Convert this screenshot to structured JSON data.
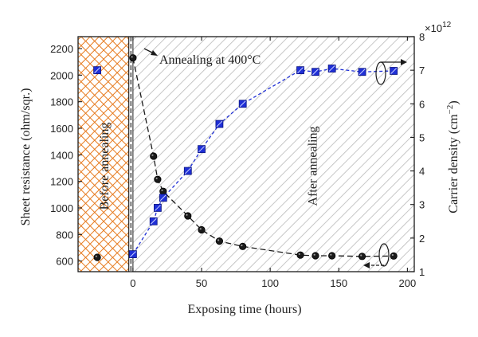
{
  "chart_data": {
    "type": "scatter",
    "xlabel": "Exposing time (hours)",
    "ylabel_left": "Sheet resistance (ohm/sqr.)",
    "ylabel_right": "Carrier density (cm",
    "ylabel_right_sup": "−2",
    "ylabel_right_close": ")",
    "right_multiplier_base": "×10",
    "right_multiplier_exp": "12",
    "xlim": [
      -40,
      205
    ],
    "ylim_left": [
      520,
      2290
    ],
    "ylim_right": [
      1,
      8
    ],
    "xticks": [
      0,
      50,
      100,
      150,
      200
    ],
    "yticks_left": [
      600,
      800,
      1000,
      1200,
      1400,
      1600,
      1800,
      2000,
      2200
    ],
    "yticks_right": [
      1,
      2,
      3,
      4,
      5,
      6,
      7,
      8
    ],
    "regions": {
      "before_label": "Before annealing",
      "after_label": "After annealing",
      "before_range": [
        -40,
        -3
      ],
      "annealing_mark": [
        -3,
        0
      ]
    },
    "annotation": "Annealing at 400°C",
    "series": [
      {
        "axis": "left",
        "marker": "circle",
        "color": "#1a1a1a",
        "before_point": {
          "x": -26,
          "y": 628
        },
        "x": [
          0,
          15,
          18,
          22,
          40,
          50,
          63,
          80,
          122,
          133,
          145,
          167,
          190
        ],
        "y": [
          2130,
          1390,
          1215,
          1125,
          940,
          835,
          750,
          710,
          645,
          640,
          640,
          635,
          638
        ]
      },
      {
        "axis": "right",
        "marker": "square",
        "color": "#1f2fd6",
        "before_point": {
          "x": -26,
          "y": 7.0
        },
        "x": [
          0,
          15,
          18,
          22,
          40,
          50,
          63,
          80,
          122,
          133,
          145,
          167,
          190
        ],
        "y": [
          1.52,
          2.5,
          2.9,
          3.2,
          4.0,
          4.65,
          5.4,
          6.0,
          7.0,
          6.95,
          7.05,
          6.95,
          6.98
        ]
      }
    ]
  }
}
